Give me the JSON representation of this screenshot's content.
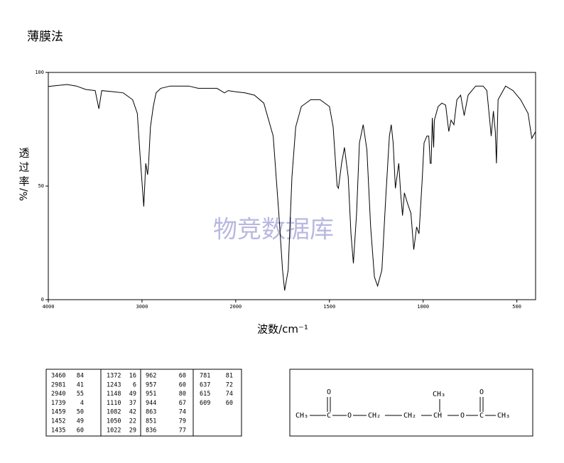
{
  "chart_data": {
    "type": "line",
    "title": "薄膜法",
    "xlabel": "波数/cm⁻¹",
    "ylabel": [
      "透",
      "过",
      "率",
      "%/"
    ],
    "watermark": "物竞数据库",
    "color": "#000000",
    "xlim": [
      4000,
      400
    ],
    "xscale": {
      "break": 2000,
      "factor": 2
    },
    "xticks": [
      4000,
      3000,
      2000,
      1500,
      1000,
      500
    ],
    "ylim": [
      0,
      100
    ],
    "yticks": [
      0,
      50,
      100
    ],
    "x": [
      4000,
      3800,
      3700,
      3600,
      3500,
      3460,
      3430,
      3300,
      3200,
      3100,
      3050,
      3020,
      2981,
      2960,
      2940,
      2930,
      2910,
      2880,
      2850,
      2800,
      2700,
      2600,
      2500,
      2400,
      2300,
      2200,
      2120,
      2080,
      2000,
      1950,
      1900,
      1850,
      1800,
      1770,
      1750,
      1739,
      1720,
      1700,
      1680,
      1650,
      1600,
      1550,
      1500,
      1480,
      1459,
      1452,
      1435,
      1420,
      1400,
      1385,
      1372,
      1355,
      1340,
      1320,
      1300,
      1280,
      1260,
      1243,
      1220,
      1200,
      1180,
      1170,
      1160,
      1148,
      1130,
      1120,
      1110,
      1100,
      1082,
      1065,
      1050,
      1035,
      1022,
      1005,
      995,
      980,
      970,
      962,
      957,
      951,
      944,
      940,
      920,
      900,
      880,
      863,
      851,
      836,
      820,
      800,
      781,
      760,
      720,
      680,
      660,
      645,
      637,
      625,
      615,
      609,
      600,
      560,
      520,
      480,
      440,
      420,
      400
    ],
    "values": [
      93.8,
      94.7,
      94,
      92.5,
      92,
      84,
      92,
      91.5,
      91,
      88,
      82,
      63,
      41,
      60,
      55,
      60,
      76,
      85,
      91,
      93,
      94,
      94,
      94,
      93,
      93,
      93,
      91,
      92,
      91.5,
      91,
      90,
      86.5,
      72,
      38,
      13,
      4,
      13,
      54,
      76,
      85,
      88,
      88,
      85,
      76,
      50,
      49,
      60,
      67,
      54,
      29,
      16,
      38,
      69,
      77,
      66,
      32,
      10,
      6,
      13,
      44,
      72,
      77,
      69,
      49,
      60,
      47,
      37,
      47,
      42,
      38,
      22,
      32,
      29,
      53,
      69,
      72,
      72,
      60,
      60,
      80,
      67,
      79,
      85,
      86.5,
      85.6,
      74,
      79,
      77,
      88,
      90,
      81,
      90,
      94,
      94,
      92,
      79,
      72,
      83,
      74,
      60,
      88,
      94,
      92,
      88,
      82,
      71,
      74
    ]
  },
  "peak_table": [
    [
      [
        3460,
        84
      ],
      [
        2981,
        41
      ],
      [
        2940,
        55
      ],
      [
        1739,
        4
      ],
      [
        1459,
        50
      ],
      [
        1452,
        49
      ],
      [
        1435,
        60
      ]
    ],
    [
      [
        1372,
        16
      ],
      [
        1243,
        6
      ],
      [
        1148,
        49
      ],
      [
        1110,
        37
      ],
      [
        1082,
        42
      ],
      [
        1050,
        22
      ],
      [
        1022,
        29
      ]
    ],
    [
      [
        962,
        60
      ],
      [
        957,
        60
      ],
      [
        951,
        80
      ],
      [
        944,
        67
      ],
      [
        863,
        74
      ],
      [
        851,
        79
      ],
      [
        836,
        77
      ]
    ],
    [
      [
        781,
        81
      ],
      [
        637,
        72
      ],
      [
        615,
        74
      ],
      [
        609,
        60
      ]
    ]
  ],
  "structure": {
    "atoms": [
      "CH₃",
      "C",
      "O",
      "O",
      "CH₂",
      "CH₂",
      "CH",
      "CH₃",
      "O",
      "C",
      "O",
      "CH₃"
    ]
  }
}
